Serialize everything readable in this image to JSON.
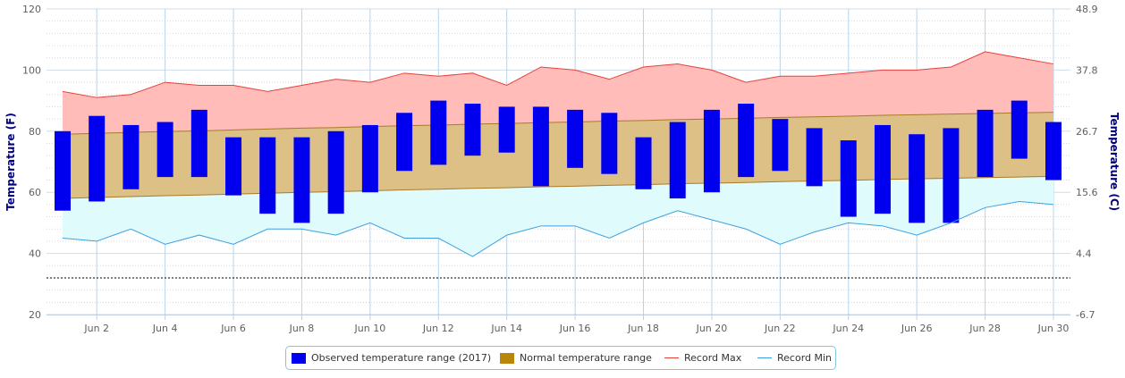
{
  "chart_data": {
    "type": "bar",
    "x": [
      1,
      2,
      3,
      4,
      5,
      6,
      7,
      8,
      9,
      10,
      11,
      12,
      13,
      14,
      15,
      16,
      17,
      18,
      19,
      20,
      21,
      22,
      23,
      24,
      25,
      26,
      27,
      28,
      29,
      30
    ],
    "x_tick_labels": [
      "Jun 2",
      "Jun 4",
      "Jun 6",
      "Jun 8",
      "Jun 10",
      "Jun 12",
      "Jun 14",
      "Jun 16",
      "Jun 18",
      "Jun 20",
      "Jun 22",
      "Jun 24",
      "Jun 26",
      "Jun 28",
      "Jun 30"
    ],
    "x_tick_days": [
      2,
      4,
      6,
      8,
      10,
      12,
      14,
      16,
      18,
      20,
      22,
      24,
      26,
      28,
      30
    ],
    "ylabel": "Temperature (F)",
    "y2label": "Temperature (C)",
    "ylim": [
      20,
      120
    ],
    "y_ticks": [
      20,
      40,
      60,
      80,
      100,
      120
    ],
    "y2_ticks": [
      "-6.7",
      "4.4",
      "15.6",
      "26.7",
      "37.8",
      "48.9"
    ],
    "freezing_line": 32,
    "grid": true,
    "legend_placement": "bottom-center",
    "series": [
      {
        "name": "Observed temperature range (2017)",
        "kind": "range-bar",
        "color": "#0000ee",
        "low": [
          54,
          57,
          61,
          65,
          65,
          59,
          53,
          50,
          53,
          60,
          67,
          69,
          72,
          73,
          62,
          68,
          66,
          61,
          58,
          60,
          65,
          67,
          62,
          52,
          53,
          50,
          50,
          65,
          71,
          64
        ],
        "high": [
          80,
          85,
          82,
          83,
          87,
          78,
          78,
          78,
          80,
          82,
          86,
          90,
          89,
          88,
          88,
          87,
          86,
          78,
          83,
          87,
          89,
          84,
          81,
          77,
          82,
          79,
          81,
          87,
          90,
          83
        ]
      },
      {
        "name": "Normal temperature range",
        "kind": "range-area",
        "color": "#b8860b",
        "low": [
          58,
          58.3,
          58.6,
          58.9,
          59.1,
          59.4,
          59.7,
          60,
          60.2,
          60.5,
          60.8,
          61,
          61.3,
          61.5,
          61.8,
          62,
          62.3,
          62.5,
          62.8,
          63,
          63.2,
          63.5,
          63.7,
          63.9,
          64.2,
          64.4,
          64.6,
          64.8,
          65,
          65.2
        ],
        "high": [
          79,
          79.3,
          79.6,
          79.9,
          80.1,
          80.4,
          80.7,
          81,
          81.2,
          81.5,
          81.8,
          82,
          82.3,
          82.5,
          82.8,
          83,
          83.3,
          83.5,
          83.8,
          84,
          84.2,
          84.5,
          84.7,
          84.9,
          85.2,
          85.4,
          85.6,
          85.8,
          86,
          86.2
        ]
      },
      {
        "name": "Record Max",
        "kind": "line",
        "color": "#e8413c",
        "values": [
          93,
          91,
          92,
          96,
          95,
          95,
          93,
          95,
          97,
          96,
          99,
          98,
          99,
          95,
          101,
          100,
          97,
          101,
          102,
          100,
          96,
          98,
          98,
          99,
          100,
          100,
          101,
          106,
          104,
          102
        ]
      },
      {
        "name": "Record Min",
        "kind": "line",
        "color": "#3ea0e0",
        "values": [
          45,
          44,
          48,
          43,
          46,
          43,
          48,
          48,
          46,
          50,
          45,
          45,
          39,
          46,
          49,
          49,
          45,
          50,
          54,
          51,
          48,
          43,
          47,
          50,
          49,
          46,
          50,
          55,
          57,
          56
        ]
      }
    ]
  },
  "legend": {
    "items": [
      {
        "label": "Observed temperature range (2017)",
        "color": "#0000ee",
        "type": "rect"
      },
      {
        "label": "Normal temperature range",
        "color": "#b8860b",
        "type": "rect"
      },
      {
        "label": "Record Max",
        "color": "#e8413c",
        "type": "line"
      },
      {
        "label": "Record Min",
        "color": "#3ea0e0",
        "type": "line"
      }
    ]
  }
}
